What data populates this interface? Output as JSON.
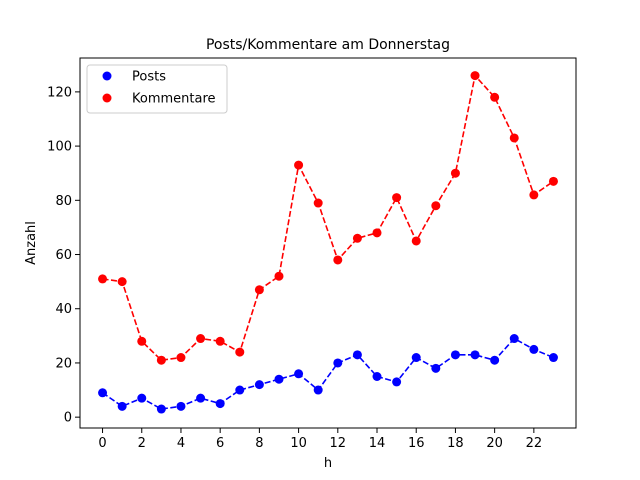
{
  "chart_data": {
    "type": "line",
    "title": "Posts/Kommentare am Donnerstag",
    "xlabel": "h",
    "ylabel": "Anzahl",
    "xlim": [
      -1.15,
      24.15
    ],
    "ylim": [
      -4,
      132.5
    ],
    "x_ticks": [
      0,
      2,
      4,
      6,
      8,
      10,
      12,
      14,
      16,
      18,
      20,
      22
    ],
    "y_ticks": [
      0,
      20,
      40,
      60,
      80,
      100,
      120
    ],
    "grid": false,
    "legend_position": "top-left",
    "x": [
      0,
      1,
      2,
      3,
      4,
      5,
      6,
      7,
      8,
      9,
      10,
      11,
      12,
      13,
      14,
      15,
      16,
      17,
      18,
      19,
      20,
      21,
      22,
      23
    ],
    "series": [
      {
        "name": "Posts",
        "color": "#0000ff",
        "line_style": "dashed",
        "marker": "circle",
        "values": [
          9,
          4,
          7,
          3,
          4,
          7,
          5,
          10,
          12,
          14,
          16,
          10,
          20,
          23,
          15,
          13,
          22,
          18,
          23,
          23,
          21,
          29,
          25,
          22
        ]
      },
      {
        "name": "Kommentare",
        "color": "#ff0000",
        "line_style": "dashed",
        "marker": "circle",
        "values": [
          51,
          50,
          28,
          21,
          22,
          29,
          28,
          24,
          47,
          52,
          93,
          79,
          58,
          66,
          68,
          81,
          65,
          78,
          90,
          126,
          118,
          103,
          82,
          87
        ]
      }
    ]
  }
}
